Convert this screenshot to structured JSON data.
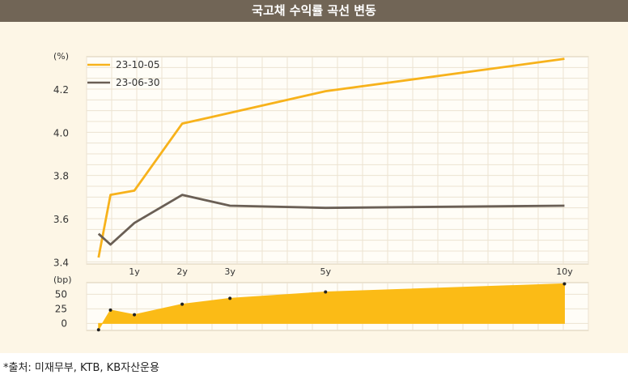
{
  "title": "국고채 수익률 곡선 변동",
  "source": "*출처: 미재무부, KTB, KB자산운용",
  "colors": {
    "title_bg": "#716556",
    "panel_bg": "#fdf6e6",
    "series_1": "#f7b21b",
    "series_2": "#6a5f55",
    "area_fill": "#fbbb16",
    "grid": "#ece3d2"
  },
  "chart_data": [
    {
      "type": "line",
      "unit_label": "(%)",
      "x": [
        0.25,
        0.5,
        1,
        2,
        3,
        5,
        10
      ],
      "x_tick_labels": [
        {
          "x": 1,
          "label": "1y"
        },
        {
          "x": 2,
          "label": "2y"
        },
        {
          "x": 3,
          "label": "3y"
        },
        {
          "x": 5,
          "label": "5y"
        },
        {
          "x": 10,
          "label": "10y"
        }
      ],
      "y_ticks": [
        3.4,
        3.6,
        3.8,
        4.0,
        4.2
      ],
      "y_tick_labels": [
        "3.4",
        "3.6",
        "3.8",
        "4.0",
        "4.2"
      ],
      "ylim": [
        3.39,
        4.35
      ],
      "xlim": [
        0,
        10.5
      ],
      "grid": true,
      "legend_position": "top-left",
      "series": [
        {
          "name": "23-10-05",
          "values": [
            3.42,
            3.71,
            3.73,
            4.04,
            4.09,
            4.19,
            4.34
          ]
        },
        {
          "name": "23-06-30",
          "values": [
            3.53,
            3.48,
            3.58,
            3.71,
            3.66,
            3.65,
            3.66
          ]
        }
      ]
    },
    {
      "type": "area",
      "unit_label": "(bp)",
      "x": [
        0.25,
        0.5,
        1,
        2,
        3,
        5,
        10
      ],
      "values": [
        -11,
        23,
        15,
        33,
        43,
        54,
        68
      ],
      "y_ticks": [
        0,
        25,
        50
      ],
      "y_tick_labels": [
        "0",
        "25",
        "50"
      ],
      "ylim": [
        -12,
        70
      ],
      "xlim": [
        0,
        10.5
      ]
    }
  ]
}
